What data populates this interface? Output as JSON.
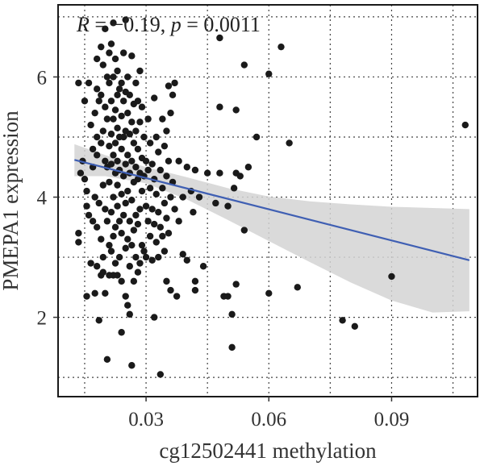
{
  "chart_data": {
    "type": "scatter",
    "xlabel": "cg12502441 methylation",
    "ylabel": "PMEPA1 expression",
    "annotation": {
      "r_symbol": "R",
      "r_text": " = −0.19, ",
      "p_symbol": "p",
      "p_text": " = 0.0011"
    },
    "xlim": [
      0.0085,
      0.111
    ],
    "ylim": [
      0.68,
      7.2
    ],
    "x_ticks": [
      0.03,
      0.06,
      0.09
    ],
    "x_tick_labels": [
      "0.03",
      "0.06",
      "0.09"
    ],
    "y_ticks": [
      2,
      4,
      6
    ],
    "y_tick_labels": [
      "2",
      "4",
      "6"
    ],
    "x_minor_gridlines": [
      0.015,
      0.045,
      0.075,
      0.105
    ],
    "y_minor_gridlines": [
      1,
      3,
      5,
      7
    ],
    "grid": "dotted",
    "point_color": "#1a1a1a",
    "line_color": "#3f5fb3",
    "band_color": "#d3d3d3",
    "regression": {
      "x": [
        0.0125,
        0.109
      ],
      "y": [
        4.62,
        2.95
      ]
    },
    "confidence_band": {
      "x": [
        0.0125,
        0.02,
        0.03,
        0.04,
        0.05,
        0.06,
        0.07,
        0.08,
        0.09,
        0.1,
        0.109
      ],
      "lower": [
        4.35,
        4.35,
        4.23,
        3.96,
        3.62,
        3.27,
        2.92,
        2.58,
        2.28,
        2.08,
        2.1
      ],
      "upper": [
        4.88,
        4.7,
        4.5,
        4.33,
        4.15,
        4.01,
        3.93,
        3.88,
        3.84,
        3.82,
        3.8
      ]
    },
    "points": [
      [
        0.0135,
        5.9
      ],
      [
        0.0135,
        3.4
      ],
      [
        0.0135,
        3.25
      ],
      [
        0.014,
        4.4
      ],
      [
        0.0145,
        4.6
      ],
      [
        0.015,
        5.6
      ],
      [
        0.015,
        4.3
      ],
      [
        0.0155,
        4.1
      ],
      [
        0.0155,
        3.85
      ],
      [
        0.016,
        3.7
      ],
      [
        0.0155,
        2.35
      ],
      [
        0.016,
        5.9
      ],
      [
        0.0165,
        5.2
      ],
      [
        0.0165,
        2.9
      ],
      [
        0.017,
        4.8
      ],
      [
        0.017,
        4.5
      ],
      [
        0.017,
        3.6
      ],
      [
        0.0175,
        5.4
      ],
      [
        0.0175,
        4.0
      ],
      [
        0.0175,
        2.4
      ],
      [
        0.018,
        6.3
      ],
      [
        0.018,
        5.8
      ],
      [
        0.018,
        5.0
      ],
      [
        0.018,
        4.7
      ],
      [
        0.018,
        3.5
      ],
      [
        0.018,
        2.85
      ],
      [
        0.0185,
        1.95
      ],
      [
        0.0185,
        5.6
      ],
      [
        0.0185,
        3.9
      ],
      [
        0.019,
        6.5
      ],
      [
        0.019,
        5.7
      ],
      [
        0.019,
        4.9
      ],
      [
        0.019,
        3.3
      ],
      [
        0.019,
        2.7
      ],
      [
        0.0195,
        6.2
      ],
      [
        0.0195,
        5.1
      ],
      [
        0.0195,
        4.2
      ],
      [
        0.0195,
        3.0
      ],
      [
        0.0195,
        2.75
      ],
      [
        0.02,
        6.8
      ],
      [
        0.02,
        5.5
      ],
      [
        0.02,
        4.6
      ],
      [
        0.02,
        3.8
      ],
      [
        0.02,
        2.4
      ],
      [
        0.0205,
        1.3
      ],
      [
        0.0205,
        6.0
      ],
      [
        0.0205,
        5.3
      ],
      [
        0.0205,
        4.5
      ],
      [
        0.0205,
        3.6
      ],
      [
        0.021,
        6.4
      ],
      [
        0.021,
        5.9
      ],
      [
        0.021,
        4.85
      ],
      [
        0.021,
        4.25
      ],
      [
        0.021,
        3.2
      ],
      [
        0.021,
        2.7
      ],
      [
        0.0215,
        6.55
      ],
      [
        0.0215,
        5.6
      ],
      [
        0.0215,
        5.05
      ],
      [
        0.0215,
        4.55
      ],
      [
        0.0215,
        3.75
      ],
      [
        0.0215,
        3.1
      ],
      [
        0.022,
        6.9
      ],
      [
        0.022,
        6.0
      ],
      [
        0.022,
        5.3
      ],
      [
        0.022,
        4.7
      ],
      [
        0.022,
        4.0
      ],
      [
        0.022,
        3.35
      ],
      [
        0.022,
        2.7
      ],
      [
        0.0225,
        6.3
      ],
      [
        0.0225,
        5.45
      ],
      [
        0.0225,
        4.9
      ],
      [
        0.0225,
        4.4
      ],
      [
        0.0225,
        3.5
      ],
      [
        0.0225,
        2.9
      ],
      [
        0.023,
        6.1
      ],
      [
        0.023,
        5.7
      ],
      [
        0.023,
        5.15
      ],
      [
        0.023,
        4.6
      ],
      [
        0.023,
        4.2
      ],
      [
        0.023,
        3.85
      ],
      [
        0.023,
        2.7
      ],
      [
        0.0235,
        5.8
      ],
      [
        0.0235,
        5.0
      ],
      [
        0.0235,
        4.45
      ],
      [
        0.0235,
        3.6
      ],
      [
        0.0235,
        3.0
      ],
      [
        0.024,
        5.9
      ],
      [
        0.024,
        5.35
      ],
      [
        0.024,
        4.8
      ],
      [
        0.024,
        4.05
      ],
      [
        0.024,
        3.4
      ],
      [
        0.024,
        2.6
      ],
      [
        0.024,
        1.75
      ],
      [
        0.0245,
        6.4
      ],
      [
        0.0245,
        5.6
      ],
      [
        0.0245,
        5.0
      ],
      [
        0.0245,
        4.35
      ],
      [
        0.0245,
        3.7
      ],
      [
        0.025,
        6.95
      ],
      [
        0.025,
        5.75
      ],
      [
        0.025,
        5.1
      ],
      [
        0.025,
        4.55
      ],
      [
        0.025,
        3.9
      ],
      [
        0.025,
        3.15
      ],
      [
        0.025,
        2.35
      ],
      [
        0.0255,
        6.0
      ],
      [
        0.0255,
        5.4
      ],
      [
        0.0255,
        4.7
      ],
      [
        0.0255,
        4.1
      ],
      [
        0.0255,
        3.3
      ],
      [
        0.0255,
        2.2
      ],
      [
        0.026,
        5.7
      ],
      [
        0.026,
        5.05
      ],
      [
        0.026,
        4.4
      ],
      [
        0.026,
        3.6
      ],
      [
        0.026,
        2.85
      ],
      [
        0.026,
        2.05
      ],
      [
        0.0265,
        6.35
      ],
      [
        0.0265,
        5.25
      ],
      [
        0.0265,
        4.6
      ],
      [
        0.0265,
        3.95
      ],
      [
        0.0265,
        3.2
      ],
      [
        0.0265,
        1.2
      ],
      [
        0.027,
        5.55
      ],
      [
        0.027,
        4.9
      ],
      [
        0.027,
        4.25
      ],
      [
        0.027,
        3.45
      ],
      [
        0.027,
        2.6
      ],
      [
        0.0275,
        5.9
      ],
      [
        0.0275,
        5.1
      ],
      [
        0.0275,
        4.5
      ],
      [
        0.0275,
        3.7
      ],
      [
        0.0275,
        3.0
      ],
      [
        0.028,
        5.6
      ],
      [
        0.028,
        4.8
      ],
      [
        0.028,
        4.3
      ],
      [
        0.028,
        3.55
      ],
      [
        0.028,
        2.75
      ],
      [
        0.0285,
        6.1
      ],
      [
        0.0285,
        5.25
      ],
      [
        0.0285,
        4.4
      ],
      [
        0.0285,
        3.8
      ],
      [
        0.0285,
        2.9
      ],
      [
        0.029,
        5.5
      ],
      [
        0.029,
        4.65
      ],
      [
        0.029,
        4.1
      ],
      [
        0.029,
        3.2
      ],
      [
        0.0295,
        5.0
      ],
      [
        0.0295,
        4.35
      ],
      [
        0.0295,
        3.1
      ],
      [
        0.03,
        4.6
      ],
      [
        0.03,
        3.85
      ],
      [
        0.03,
        3.0
      ],
      [
        0.0305,
        5.3
      ],
      [
        0.0305,
        4.45
      ],
      [
        0.0305,
        3.6
      ],
      [
        0.031,
        4.9
      ],
      [
        0.031,
        4.15
      ],
      [
        0.031,
        3.35
      ],
      [
        0.0315,
        4.55
      ],
      [
        0.0315,
        3.8
      ],
      [
        0.0315,
        2.95
      ],
      [
        0.032,
        5.65
      ],
      [
        0.032,
        4.3
      ],
      [
        0.032,
        3.55
      ],
      [
        0.032,
        2.0
      ],
      [
        0.0325,
        5.0
      ],
      [
        0.0325,
        4.05
      ],
      [
        0.0325,
        3.25
      ],
      [
        0.033,
        4.75
      ],
      [
        0.033,
        3.75
      ],
      [
        0.033,
        3.0
      ],
      [
        0.0335,
        4.45
      ],
      [
        0.0335,
        3.5
      ],
      [
        0.0335,
        1.05
      ],
      [
        0.034,
        5.3
      ],
      [
        0.034,
        4.15
      ],
      [
        0.034,
        3.35
      ],
      [
        0.0345,
        4.85
      ],
      [
        0.0345,
        3.9
      ],
      [
        0.0345,
        3.1
      ],
      [
        0.035,
        5.1
      ],
      [
        0.035,
        4.35
      ],
      [
        0.035,
        3.65
      ],
      [
        0.035,
        2.6
      ],
      [
        0.0355,
        5.85
      ],
      [
        0.0355,
        4.6
      ],
      [
        0.0355,
        3.4
      ],
      [
        0.036,
        5.4
      ],
      [
        0.036,
        4.0
      ],
      [
        0.036,
        2.45
      ],
      [
        0.0365,
        5.7
      ],
      [
        0.0365,
        4.25
      ],
      [
        0.037,
        5.9
      ],
      [
        0.037,
        3.8
      ],
      [
        0.0375,
        2.35
      ],
      [
        0.038,
        4.6
      ],
      [
        0.038,
        3.6
      ],
      [
        0.039,
        4.0
      ],
      [
        0.039,
        3.05
      ],
      [
        0.04,
        4.5
      ],
      [
        0.04,
        2.95
      ],
      [
        0.041,
        4.1
      ],
      [
        0.0415,
        3.75
      ],
      [
        0.042,
        4.45
      ],
      [
        0.042,
        2.6
      ],
      [
        0.042,
        2.45
      ],
      [
        0.043,
        4.0
      ],
      [
        0.044,
        2.85
      ],
      [
        0.045,
        4.4
      ],
      [
        0.047,
        3.9
      ],
      [
        0.048,
        6.65
      ],
      [
        0.048,
        5.5
      ],
      [
        0.048,
        4.4
      ],
      [
        0.049,
        2.35
      ],
      [
        0.05,
        3.85
      ],
      [
        0.05,
        2.35
      ],
      [
        0.051,
        1.5
      ],
      [
        0.051,
        2.05
      ],
      [
        0.0515,
        4.15
      ],
      [
        0.052,
        5.45
      ],
      [
        0.052,
        4.4
      ],
      [
        0.052,
        2.55
      ],
      [
        0.053,
        4.35
      ],
      [
        0.054,
        6.2
      ],
      [
        0.054,
        3.45
      ],
      [
        0.055,
        4.5
      ],
      [
        0.057,
        5.0
      ],
      [
        0.06,
        6.05
      ],
      [
        0.06,
        2.4
      ],
      [
        0.063,
        6.5
      ],
      [
        0.065,
        4.9
      ],
      [
        0.067,
        2.5
      ],
      [
        0.078,
        1.95
      ],
      [
        0.081,
        1.85
      ],
      [
        0.09,
        2.68
      ],
      [
        0.108,
        5.2
      ]
    ]
  }
}
